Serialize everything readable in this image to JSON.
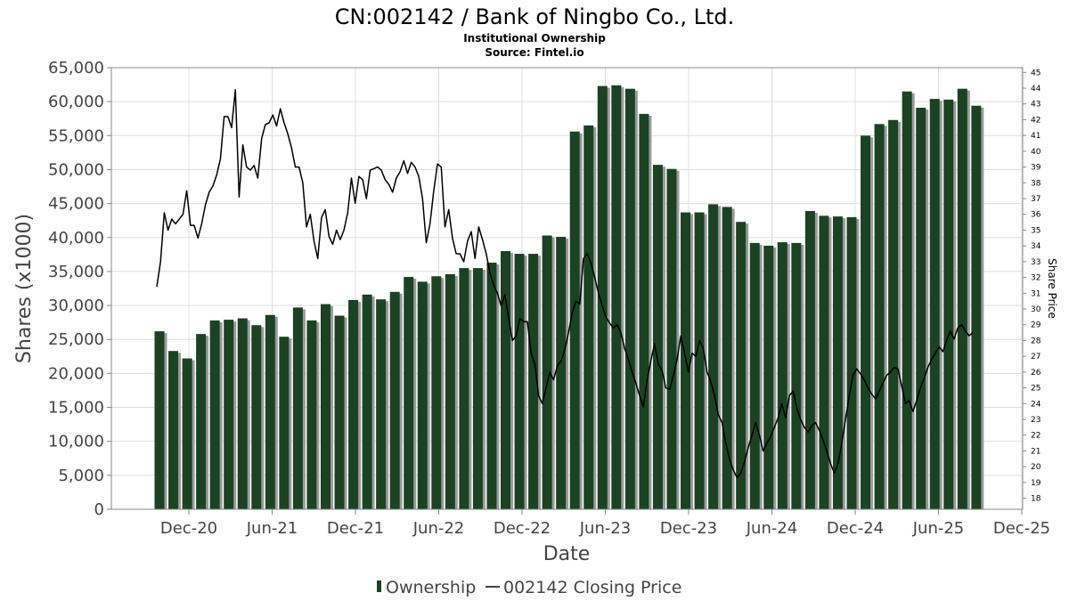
{
  "header": {
    "title": "CN:002142 / Bank of Ningbo Co., Ltd.",
    "subtitle": "Institutional Ownership",
    "source": "Source: Fintel.io"
  },
  "legend": {
    "ownership_label": "Ownership",
    "price_label": "002142 Closing Price"
  },
  "colors": {
    "bar": "#1a4223",
    "bar_shadow": "#9a9a9a",
    "line": "#000000",
    "grid": "#dddddd"
  },
  "chart_data": {
    "type": "bar",
    "title": "CN:002142 / Bank of Ningbo Co., Ltd.",
    "xlabel": "Date",
    "ylabel": "Shares (x1000)",
    "y2label": "Share Price",
    "ylim": [
      0,
      65000
    ],
    "y2lim": [
      17.3,
      45.3
    ],
    "yticks": [
      0,
      5000,
      10000,
      15000,
      20000,
      25000,
      30000,
      35000,
      40000,
      45000,
      50000,
      55000,
      60000,
      65000
    ],
    "ytick_labels": [
      "0",
      "5,000",
      "10,000",
      "15,000",
      "20,000",
      "25,000",
      "30,000",
      "35,000",
      "40,000",
      "45,000",
      "50,000",
      "55,000",
      "60,000",
      "65,000"
    ],
    "y2ticks": [
      18,
      19,
      20,
      21,
      22,
      23,
      24,
      25,
      26,
      27,
      28,
      29,
      30,
      31,
      32,
      33,
      34,
      35,
      36,
      37,
      38,
      39,
      40,
      41,
      42,
      43,
      44,
      45
    ],
    "x_tick_labels": [
      "Dec-20",
      "Jun-21",
      "Dec-21",
      "Jun-22",
      "Dec-22",
      "Jun-23",
      "Dec-23",
      "Jun-24",
      "Dec-24",
      "Jun-25",
      "Dec-25"
    ],
    "grid": true,
    "legend_position": "bottom",
    "series": [
      {
        "name": "Ownership",
        "type": "bar",
        "values": [
          26200,
          23300,
          22200,
          25800,
          27800,
          27900,
          28100,
          27100,
          28600,
          25400,
          29700,
          27800,
          30200,
          28500,
          30800,
          31600,
          30900,
          32000,
          34200,
          33500,
          34300,
          34600,
          35500,
          35500,
          36300,
          38000,
          37600,
          37600,
          40300,
          40100,
          55600,
          56500,
          62300,
          62400,
          61900,
          58200,
          50700,
          50100,
          43700,
          43700,
          44900,
          44500,
          42300,
          39200,
          38800,
          39300,
          39200,
          43900,
          43200,
          43100,
          43000,
          55000,
          56700,
          57300,
          61500,
          59100,
          60400,
          60300,
          61900,
          59400
        ]
      },
      {
        "name": "002142 Closing Price",
        "type": "line",
        "values": [
          31.4,
          33.0,
          36.1,
          35.0,
          35.7,
          35.4,
          35.7,
          36.0,
          37.5,
          35.3,
          35.3,
          34.5,
          35.4,
          36.6,
          37.4,
          37.8,
          38.5,
          39.5,
          42.2,
          42.2,
          41.5,
          43.9,
          37.1,
          40.4,
          39.0,
          38.8,
          39.1,
          38.3,
          40.8,
          41.7,
          41.8,
          42.3,
          41.6,
          42.7,
          41.8,
          41.1,
          40.2,
          39.0,
          39.0,
          38.0,
          35.2,
          36.0,
          34.3,
          33.2,
          35.8,
          36.3,
          34.6,
          34.1,
          35.0,
          34.4,
          35.0,
          36.1,
          38.3,
          36.7,
          38.4,
          38.2,
          37.0,
          38.8,
          38.9,
          39.0,
          38.8,
          38.2,
          37.9,
          37.4,
          38.3,
          38.7,
          39.4,
          38.6,
          39.3,
          39.0,
          38.4,
          37.0,
          34.2,
          35.4,
          37.5,
          39.2,
          39.0,
          35.2,
          36.3,
          34.5,
          33.5,
          33.5,
          33.0,
          34.3,
          34.9,
          33.2,
          35.2,
          34.4,
          33.5,
          32.3,
          31.5,
          31.0,
          30.2,
          30.9,
          29.4,
          28.0,
          28.3,
          29.4,
          29.2,
          29.2,
          27.2,
          26.5,
          24.5,
          24.0,
          25.0,
          26.0,
          25.5,
          26.4,
          26.7,
          27.4,
          28.5,
          29.8,
          30.5,
          30.3,
          33.2,
          33.5,
          32.9,
          32.0,
          31.0,
          30.2,
          29.5,
          29.1,
          28.8,
          29.0,
          28.5,
          27.5,
          26.8,
          26.0,
          25.3,
          24.5,
          23.8,
          25.5,
          26.7,
          27.8,
          26.5,
          26.1,
          25.0,
          24.9,
          25.8,
          26.8,
          28.3,
          27.2,
          26.0,
          27.2,
          27.0,
          28.0,
          27.5,
          26.0,
          25.4,
          24.5,
          23.3,
          22.8,
          21.5,
          20.5,
          19.8,
          19.3,
          19.6,
          20.3,
          21.2,
          22.0,
          22.8,
          22.0,
          21.0,
          21.5,
          21.9,
          22.5,
          23.1,
          24.0,
          23.1,
          24.5,
          24.8,
          23.7,
          23.0,
          22.5,
          22.2,
          22.6,
          22.8,
          22.3,
          21.7,
          21.0,
          20.2,
          19.6,
          20.2,
          21.5,
          23.0,
          24.5,
          25.8,
          26.2,
          25.9,
          25.5,
          25.0,
          24.6,
          24.3,
          24.8,
          25.3,
          25.8,
          26.0,
          26.3,
          26.2,
          25.1,
          24.0,
          24.2,
          23.5,
          24.2,
          25.0,
          25.6,
          26.3,
          26.8,
          27.2,
          27.6,
          27.3,
          28.0,
          28.6,
          28.1,
          28.8,
          29.0,
          28.6,
          28.3,
          28.5
        ]
      }
    ]
  }
}
